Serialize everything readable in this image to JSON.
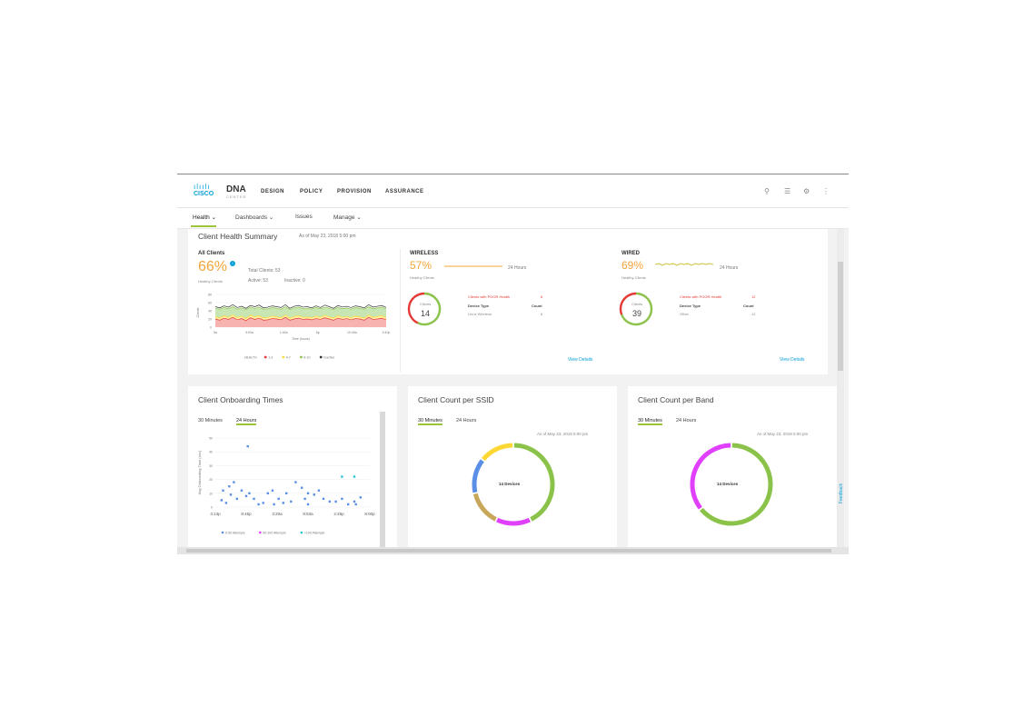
{
  "brand": {
    "company": "CISCO",
    "product": "DNA",
    "product_sub": "CENTER"
  },
  "nav": [
    "DESIGN",
    "POLICY",
    "PROVISION",
    "ASSURANCE"
  ],
  "subnav": [
    {
      "label": "Health",
      "chevron": true
    },
    {
      "label": "Dashboards",
      "chevron": true
    },
    {
      "label": "Issues",
      "chevron": false
    },
    {
      "label": "Manage",
      "chevron": true
    }
  ],
  "health": {
    "title": "Client Health Summary",
    "as_of": "As of May 23, 2018 5:00 pm",
    "all_clients": {
      "label": "All Clients",
      "pct": "66%",
      "sub": "Healthy Clients",
      "total": "Total Clients: 53",
      "active": "Active: 53",
      "inactive": "Inactive: 0",
      "y_axis_label": "Clients",
      "x_axis_label": "Time (hours)",
      "y_ticks": [
        "80",
        "60",
        "40",
        "20",
        "0"
      ],
      "x_ticks": [
        "5a",
        "9:00a",
        "1:40a",
        "6p",
        "10:40a",
        "2:40p"
      ],
      "legend": [
        "HEALTH",
        "1-3",
        "4-7",
        "8-10",
        "Inactive"
      ]
    },
    "wireless": {
      "label": "WIRELESS",
      "pct": "57%",
      "sub": "Healthy Clients",
      "range": "24 Hours",
      "clients_label": "Clients",
      "clients_count": "14",
      "poor_label": "Clients with POOR Health",
      "poor_count": "6",
      "device_type_header": "Device Type",
      "count_header": "Count",
      "device_type": "Linux Wireless",
      "device_count": "6",
      "view_details": "View Details",
      "healthy_fraction": 0.57
    },
    "wired": {
      "label": "WIRED",
      "pct": "69%",
      "sub": "Healthy Clients",
      "range": "24 Hours",
      "clients_label": "Clients",
      "clients_count": "39",
      "poor_label": "Clients with POOR Health",
      "poor_count": "12",
      "device_type_header": "Device Type",
      "count_header": "Count",
      "device_type": "Other",
      "device_count": "12",
      "view_details": "View Details",
      "healthy_fraction": 0.69
    }
  },
  "onboarding": {
    "title": "Client Onboarding Times",
    "tabs": [
      "30 Minutes",
      "24 Hours"
    ],
    "selected_tab": "24 Hours",
    "y_label": "Avg Onboarding Time (sec)",
    "y_ticks": [
      "50",
      "40",
      "30",
      "20",
      "10",
      "0"
    ],
    "x_ticks": [
      "4:13p",
      "8:45p",
      "3:20a",
      "8:53a",
      "2:26p",
      "8:00p"
    ],
    "legend": [
      "0-50 Attempts",
      "50-100 Attempts",
      ">100 Attempts"
    ]
  },
  "ssid": {
    "title": "Client Count per SSID",
    "tabs": [
      "30 Minutes",
      "24 Hours"
    ],
    "selected_tab": "30 Minutes",
    "as_of": "As of May 23, 2018 5:00 pm",
    "center": "14 Devices"
  },
  "band": {
    "title": "Client Count per Band",
    "tabs": [
      "30 Minutes",
      "24 Hours"
    ],
    "selected_tab": "30 Minutes",
    "as_of": "As of May 23, 2018 5:00 pm",
    "center": "14 Devices"
  },
  "feedback": "Feedback",
  "icons": [
    "search-icon",
    "list-icon",
    "gear-icon",
    "menu-icon",
    "info-icon",
    "chevron-down-icon"
  ],
  "colors": {
    "accent": "#9cc33a",
    "good": "#8bc34a",
    "bad": "#e53935",
    "warn": "#fdd835",
    "healthy_pct": "#f4a53a",
    "link": "#049fd9"
  },
  "chart_data": [
    {
      "type": "area",
      "title": "All Clients",
      "xlabel": "Time (hours)",
      "ylabel": "Clients",
      "ylim": [
        0,
        80
      ],
      "x_ticks": [
        "5a",
        "9:00a",
        "1:40a",
        "6p",
        "10:40a",
        "2:40p"
      ],
      "series": [
        {
          "name": "Inactive",
          "color": "#333333",
          "values": [
            50,
            47,
            52,
            49,
            55,
            48,
            51,
            46,
            53,
            50,
            54,
            47,
            49,
            52,
            50,
            48,
            55,
            46,
            51,
            53,
            49,
            50,
            47,
            52,
            48,
            54,
            50,
            46,
            53,
            49,
            51,
            48,
            52,
            50,
            47,
            55,
            49,
            51,
            53,
            48
          ]
        },
        {
          "name": "8-10",
          "color": "#8bc34a",
          "values": [
            46,
            44,
            48,
            45,
            50,
            44,
            47,
            43,
            49,
            46,
            49,
            44,
            45,
            48,
            46,
            44,
            50,
            43,
            47,
            49,
            45,
            46,
            44,
            48,
            45,
            49,
            46,
            43,
            48,
            45,
            47,
            44,
            48,
            46,
            44,
            50,
            45,
            47,
            49,
            44
          ]
        },
        {
          "name": "4-7",
          "color": "#fdd835",
          "values": [
            26,
            22,
            28,
            24,
            30,
            23,
            27,
            21,
            29,
            25,
            28,
            22,
            24,
            27,
            25,
            23,
            30,
            22,
            26,
            28,
            24,
            25,
            23,
            27,
            24,
            29,
            25,
            22,
            28,
            24,
            26,
            23,
            27,
            25,
            22,
            30,
            24,
            26,
            28,
            23
          ]
        },
        {
          "name": "1-3",
          "color": "#e53935",
          "values": [
            20,
            17,
            22,
            19,
            24,
            18,
            21,
            16,
            23,
            19,
            22,
            17,
            18,
            21,
            20,
            18,
            24,
            17,
            20,
            22,
            19,
            20,
            18,
            21,
            19,
            23,
            20,
            17,
            22,
            19,
            21,
            18,
            21,
            20,
            17,
            24,
            19,
            20,
            22,
            18
          ]
        }
      ]
    },
    {
      "type": "scatter",
      "title": "Client Onboarding Times",
      "ylabel": "Avg Onboarding Time (sec)",
      "ylim": [
        0,
        50
      ],
      "x_ticks": [
        "4:13p",
        "8:45p",
        "3:20a",
        "8:53a",
        "2:26p",
        "8:00p"
      ],
      "xlim": [
        0,
        5
      ],
      "series": [
        {
          "name": "0-50 Attempts",
          "color": "#5b8ee6",
          "points": [
            [
              0.25,
              12
            ],
            [
              0.45,
              15
            ],
            [
              0.6,
              18
            ],
            [
              0.2,
              5
            ],
            [
              0.35,
              3
            ],
            [
              0.5,
              9
            ],
            [
              0.7,
              6
            ],
            [
              0.85,
              12
            ],
            [
              1.0,
              8
            ],
            [
              1.1,
              10
            ],
            [
              1.25,
              6
            ],
            [
              1.4,
              2
            ],
            [
              1.55,
              3
            ],
            [
              1.05,
              44
            ],
            [
              1.7,
              10
            ],
            [
              1.85,
              12
            ],
            [
              2.05,
              6
            ],
            [
              2.3,
              10
            ],
            [
              2.45,
              4
            ],
            [
              2.6,
              18
            ],
            [
              2.8,
              14
            ],
            [
              3.0,
              10
            ],
            [
              3.2,
              9
            ],
            [
              3.35,
              12
            ],
            [
              3.5,
              6
            ],
            [
              3.7,
              4
            ],
            [
              3.9,
              4
            ],
            [
              4.1,
              6
            ],
            [
              4.3,
              2
            ],
            [
              4.55,
              2
            ],
            [
              4.7,
              7
            ],
            [
              3.0,
              2
            ],
            [
              2.9,
              6
            ],
            [
              4.5,
              4
            ],
            [
              1.9,
              2
            ],
            [
              2.2,
              3
            ]
          ]
        },
        {
          "name": "50-100 Attempts",
          "color": "#e040fb",
          "points": []
        },
        {
          "name": ">100 Attempts",
          "color": "#26c6da",
          "points": [
            [
              4.1,
              22
            ],
            [
              4.5,
              22
            ]
          ]
        }
      ]
    },
    {
      "type": "pie",
      "title": "Client Count per SSID",
      "center_label": "14 Devices",
      "slices": [
        {
          "color": "#8bc34a",
          "value": 6
        },
        {
          "color": "#e040fb",
          "value": 2
        },
        {
          "color": "#c8a75a",
          "value": 2
        },
        {
          "color": "#5b8ee6",
          "value": 2
        },
        {
          "color": "#fdd835",
          "value": 2
        }
      ]
    },
    {
      "type": "pie",
      "title": "Client Count per Band",
      "center_label": "14 Devices",
      "slices": [
        {
          "color": "#8bc34a",
          "value": 9
        },
        {
          "color": "#e040fb",
          "value": 5
        }
      ]
    }
  ]
}
